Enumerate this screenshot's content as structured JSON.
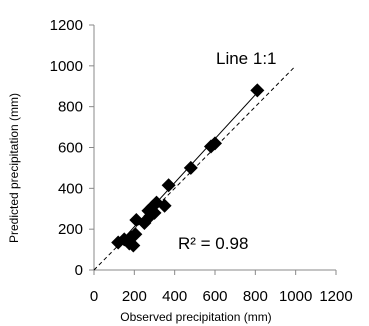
{
  "chart_data": {
    "type": "scatter",
    "xlabel": "Observed precipitation (mm)",
    "ylabel": "Predicted precipitation (mm)",
    "xlim": [
      0,
      1200
    ],
    "ylim": [
      0,
      1200
    ],
    "xticks": [
      "0",
      "200",
      "400",
      "600",
      "800",
      "1000",
      "1200"
    ],
    "yticks": [
      "0",
      "200",
      "400",
      "600",
      "800",
      "1000",
      "1200"
    ],
    "grid": false,
    "points": {
      "x": [
        120,
        150,
        175,
        185,
        195,
        205,
        210,
        250,
        270,
        280,
        290,
        300,
        310,
        350,
        370,
        480,
        580,
        600,
        810
      ],
      "y": [
        135,
        150,
        130,
        160,
        120,
        175,
        245,
        230,
        290,
        265,
        310,
        280,
        330,
        315,
        415,
        500,
        605,
        620,
        880
      ]
    },
    "trendline": {
      "x": [
        110,
        820
      ],
      "y": [
        115,
        880
      ]
    },
    "reference_line_label": "Line 1:1",
    "r2_label": "R² = 0.98"
  }
}
